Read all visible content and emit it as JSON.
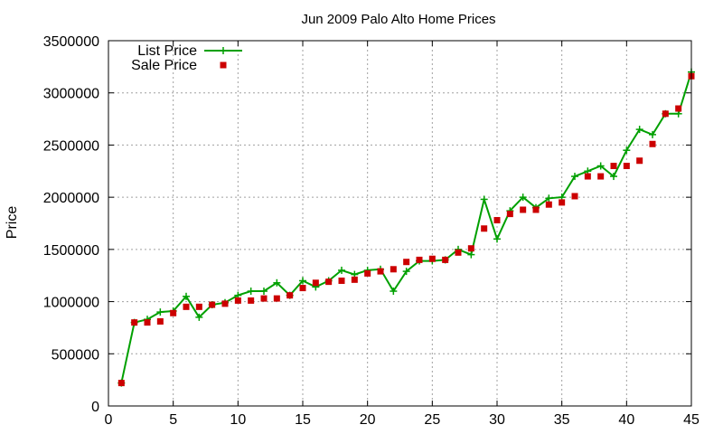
{
  "chart_data": {
    "type": "line",
    "title": "Jun 2009 Palo Alto Home Prices",
    "xlabel": "",
    "ylabel": "Price",
    "xlim": [
      0,
      45
    ],
    "ylim": [
      0,
      3500000
    ],
    "x_ticks": [
      0,
      5,
      10,
      15,
      20,
      25,
      30,
      35,
      40,
      45
    ],
    "x_tick_labels": [
      "0",
      "5",
      "10",
      "15",
      "20",
      "25",
      "30",
      "35",
      "40",
      "45"
    ],
    "y_ticks": [
      0,
      500000,
      1000000,
      1500000,
      2000000,
      2500000,
      3000000,
      3500000
    ],
    "y_tick_labels": [
      "0",
      "500000",
      "1000000",
      "1500000",
      "2000000",
      "2500000",
      "3000000",
      "3500000"
    ],
    "grid": true,
    "legend_position": "top-left",
    "x": [
      1,
      2,
      3,
      4,
      5,
      6,
      7,
      8,
      9,
      10,
      11,
      12,
      13,
      14,
      15,
      16,
      17,
      18,
      19,
      20,
      21,
      22,
      23,
      24,
      25,
      26,
      27,
      28,
      29,
      30,
      31,
      32,
      33,
      34,
      35,
      36,
      37,
      38,
      39,
      40,
      41,
      42,
      43,
      44,
      45
    ],
    "series": [
      {
        "name": "List Price",
        "style": "linespoints",
        "color": "#00a000",
        "marker": "plus",
        "values": [
          220000,
          800000,
          830000,
          900000,
          910000,
          1050000,
          850000,
          970000,
          990000,
          1060000,
          1100000,
          1100000,
          1180000,
          1060000,
          1200000,
          1140000,
          1200000,
          1300000,
          1260000,
          1300000,
          1310000,
          1100000,
          1290000,
          1390000,
          1390000,
          1400000,
          1500000,
          1450000,
          1980000,
          1600000,
          1870000,
          2000000,
          1900000,
          1990000,
          2000000,
          2200000,
          2250000,
          2300000,
          2200000,
          2450000,
          2650000,
          2600000,
          2800000,
          2800000,
          3200000
        ]
      },
      {
        "name": "Sale Price",
        "style": "points",
        "color": "#cc0000",
        "marker": "square",
        "values": [
          220000,
          800000,
          800000,
          810000,
          890000,
          950000,
          950000,
          970000,
          980000,
          1010000,
          1010000,
          1030000,
          1030000,
          1060000,
          1130000,
          1180000,
          1190000,
          1200000,
          1210000,
          1270000,
          1290000,
          1310000,
          1380000,
          1400000,
          1410000,
          1400000,
          1470000,
          1510000,
          1700000,
          1780000,
          1840000,
          1880000,
          1880000,
          1930000,
          1950000,
          2010000,
          2200000,
          2200000,
          2300000,
          2300000,
          2350000,
          2510000,
          2800000,
          2850000,
          3160000
        ]
      }
    ]
  }
}
